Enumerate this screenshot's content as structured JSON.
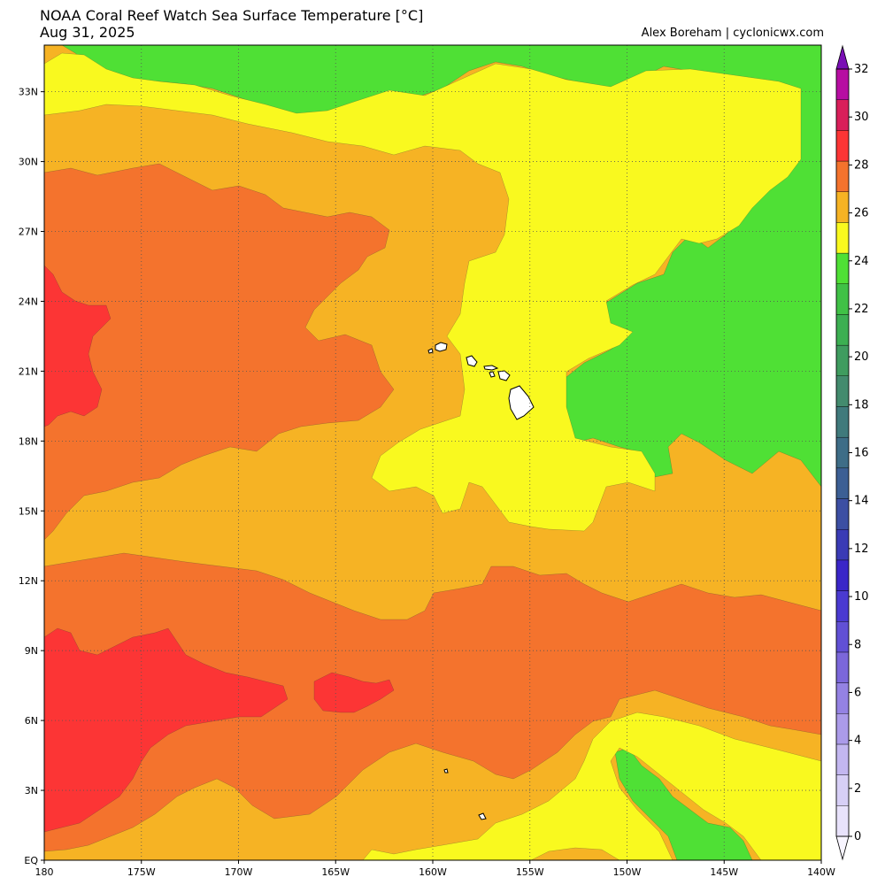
{
  "header": {
    "title": "NOAA Coral Reef Watch Sea Surface Temperature [°C]",
    "date": "Aug 31, 2025",
    "credit": "Alex Boreham | cyclonicwx.com"
  },
  "map": {
    "lon_range": [
      -180,
      -140
    ],
    "lat_range": [
      0,
      35
    ],
    "x_ticks": [
      {
        "lon": -180,
        "label": "180"
      },
      {
        "lon": -175,
        "label": "175W"
      },
      {
        "lon": -170,
        "label": "170W"
      },
      {
        "lon": -165,
        "label": "165W"
      },
      {
        "lon": -160,
        "label": "160W"
      },
      {
        "lon": -155,
        "label": "155W"
      },
      {
        "lon": -150,
        "label": "150W"
      },
      {
        "lon": -145,
        "label": "145W"
      },
      {
        "lon": -140,
        "label": "140W"
      }
    ],
    "y_ticks": [
      {
        "lat": 0,
        "label": "EQ"
      },
      {
        "lat": 3,
        "label": "3N"
      },
      {
        "lat": 6,
        "label": "6N"
      },
      {
        "lat": 9,
        "label": "9N"
      },
      {
        "lat": 12,
        "label": "12N"
      },
      {
        "lat": 15,
        "label": "15N"
      },
      {
        "lat": 18,
        "label": "18N"
      },
      {
        "lat": 21,
        "label": "21N"
      },
      {
        "lat": 24,
        "label": "24N"
      },
      {
        "lat": 27,
        "label": "27N"
      },
      {
        "lat": 30,
        "label": "30N"
      },
      {
        "lat": 33,
        "label": "33N"
      }
    ],
    "gridlines": "dotted",
    "background_color": "#f6b324",
    "regions": [
      {
        "name": "sst-band-26-28",
        "color": "#f6b324"
      },
      {
        "name": "sst-band-24-26",
        "color": "#4fe035"
      },
      {
        "name": "sst-band-26-27",
        "color": "#f9f91f"
      },
      {
        "name": "sst-band-28-30",
        "color": "#f4732d"
      },
      {
        "name": "sst-band-30-31",
        "color": "#fc3535"
      }
    ],
    "land_color": "#ffffff"
  },
  "colorbar": {
    "ticks": [
      "0",
      "2",
      "4",
      "6",
      "8",
      "10",
      "12",
      "14",
      "16",
      "18",
      "20",
      "22",
      "24",
      "26",
      "28",
      "30",
      "32"
    ],
    "colors": [
      "#f8f5ff",
      "#e8e2fb",
      "#d7cff6",
      "#c3b7f0",
      "#ab9be9",
      "#9482e3",
      "#7b67da",
      "#6150d5",
      "#4a3ad1",
      "#3a26c8",
      "#3a3bb5",
      "#3c4fa3",
      "#3c5f94",
      "#3e6d87",
      "#407a7c",
      "#438b6e",
      "#3f9c5f",
      "#3caf52",
      "#40c146",
      "#4fe035",
      "#f9f91f",
      "#f6b324",
      "#f4732d",
      "#fc3535",
      "#d91f5a",
      "#b70ea2",
      "#7a0fb5"
    ]
  }
}
